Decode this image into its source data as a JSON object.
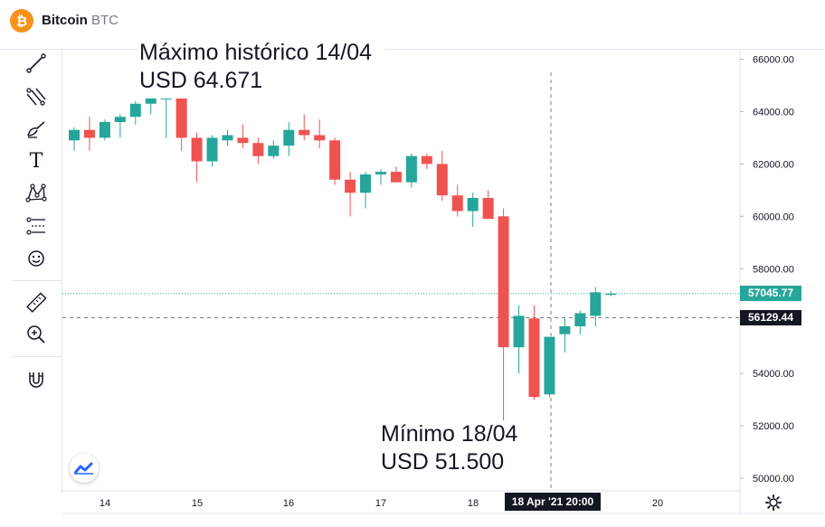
{
  "header": {
    "title": "Bitcoin",
    "ticker": "BTC",
    "logo_symbol": "₿",
    "logo_color": "#f7931a"
  },
  "toolbar": {
    "tools": [
      "trend-line-icon",
      "fib-retracement-icon",
      "brush-icon",
      "text-icon",
      "pattern-icon",
      "forecast-icon",
      "emoji-icon",
      "ruler-icon",
      "zoom-icon",
      "magnet-icon"
    ],
    "text_tool_glyph": "T"
  },
  "annotations": {
    "max_line1": "Máximo histórico 14/04",
    "max_line2": "USD 64.671",
    "min_line1": "Mínimo 18/04",
    "min_line2": "USD 51.500"
  },
  "price_tags": {
    "last": "57045.77",
    "crosshair": "56129.44"
  },
  "time_axis": {
    "labels": [
      "14",
      "15",
      "16",
      "17",
      "18",
      "20"
    ],
    "crosshair_label": "18 Apr '21   20:00"
  },
  "chart_data": {
    "type": "candlestick",
    "ylim": [
      49500,
      66500
    ],
    "y_ticks": [
      "66000.00",
      "64000.00",
      "62000.00",
      "60000.00",
      "58000.00",
      "54000.00",
      "52000.00",
      "50000.00"
    ],
    "last_price": 57045.77,
    "crosshair_price": 56129.44,
    "colors": {
      "up": "#26a69a",
      "down": "#ef5350",
      "last_line": "#26a69a"
    },
    "candles": [
      {
        "o": 62900,
        "h": 63400,
        "l": 62500,
        "c": 63300
      },
      {
        "o": 63300,
        "h": 63800,
        "l": 62500,
        "c": 63000
      },
      {
        "o": 63000,
        "h": 63700,
        "l": 62900,
        "c": 63600
      },
      {
        "o": 63600,
        "h": 63900,
        "l": 63000,
        "c": 63800
      },
      {
        "o": 63800,
        "h": 64400,
        "l": 63500,
        "c": 64300
      },
      {
        "o": 64300,
        "h": 64900,
        "l": 63900,
        "c": 64600
      },
      {
        "o": 64500,
        "h": 64800,
        "l": 63000,
        "c": 64500
      },
      {
        "o": 64500,
        "h": 64600,
        "l": 62500,
        "c": 63000
      },
      {
        "o": 63000,
        "h": 63200,
        "l": 61300,
        "c": 62100
      },
      {
        "o": 62100,
        "h": 63100,
        "l": 61900,
        "c": 63000
      },
      {
        "o": 62900,
        "h": 63300,
        "l": 62700,
        "c": 63100
      },
      {
        "o": 63000,
        "h": 63500,
        "l": 62600,
        "c": 62800
      },
      {
        "o": 62800,
        "h": 63000,
        "l": 62000,
        "c": 62300
      },
      {
        "o": 62300,
        "h": 62900,
        "l": 62200,
        "c": 62700
      },
      {
        "o": 62700,
        "h": 63600,
        "l": 62300,
        "c": 63300
      },
      {
        "o": 63300,
        "h": 63900,
        "l": 62900,
        "c": 63100
      },
      {
        "o": 63100,
        "h": 63700,
        "l": 62600,
        "c": 62900
      },
      {
        "o": 62900,
        "h": 63000,
        "l": 61200,
        "c": 61400
      },
      {
        "o": 61400,
        "h": 61700,
        "l": 60000,
        "c": 60900
      },
      {
        "o": 60900,
        "h": 61700,
        "l": 60300,
        "c": 61600
      },
      {
        "o": 61600,
        "h": 61800,
        "l": 61200,
        "c": 61700
      },
      {
        "o": 61700,
        "h": 61900,
        "l": 61300,
        "c": 61300
      },
      {
        "o": 61300,
        "h": 62400,
        "l": 61100,
        "c": 62300
      },
      {
        "o": 62300,
        "h": 62400,
        "l": 61800,
        "c": 62000
      },
      {
        "o": 62000,
        "h": 62500,
        "l": 60600,
        "c": 60800
      },
      {
        "o": 60800,
        "h": 61200,
        "l": 60000,
        "c": 60200
      },
      {
        "o": 60200,
        "h": 60900,
        "l": 59600,
        "c": 60700
      },
      {
        "o": 60700,
        "h": 61000,
        "l": 59900,
        "c": 59900
      },
      {
        "o": 60000,
        "h": 60300,
        "l": 52100,
        "c": 55000
      },
      {
        "o": 55000,
        "h": 56600,
        "l": 54000,
        "c": 56200
      },
      {
        "o": 56100,
        "h": 56600,
        "l": 53000,
        "c": 53100
      },
      {
        "o": 53200,
        "h": 55400,
        "l": 53100,
        "c": 55400
      },
      {
        "o": 55500,
        "h": 56100,
        "l": 54800,
        "c": 55800
      },
      {
        "o": 55800,
        "h": 56400,
        "l": 55500,
        "c": 56300
      },
      {
        "o": 56200,
        "h": 57300,
        "l": 55800,
        "c": 57100
      },
      {
        "o": 57000,
        "h": 57150,
        "l": 56950,
        "c": 57050
      }
    ]
  }
}
